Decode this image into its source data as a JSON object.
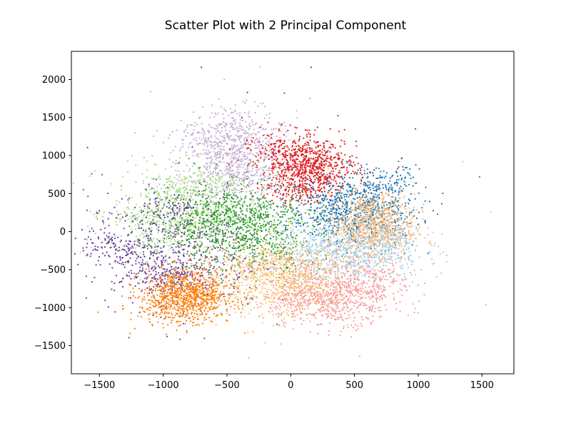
{
  "chart_data": {
    "type": "scatter",
    "title": "Scatter Plot with 2 Principal Component",
    "xlabel": "",
    "ylabel": "",
    "xlim": [
      -1720,
      1750
    ],
    "ylim": [
      -1870,
      2370
    ],
    "xticks": [
      -1500,
      -1000,
      -500,
      0,
      500,
      1000,
      1500
    ],
    "yticks": [
      -1500,
      -1000,
      -500,
      0,
      500,
      1000,
      1500,
      2000
    ],
    "xtick_labels": [
      "−1500",
      "−1000",
      "−500",
      "0",
      "500",
      "1000",
      "1500"
    ],
    "ytick_labels": [
      "−1500",
      "−1000",
      "−500",
      "0",
      "500",
      "1000",
      "1500",
      "2000"
    ],
    "grid": false,
    "legend": "none",
    "series": [
      {
        "color": "#c5b0d5",
        "center": [
          -420,
          920
        ],
        "spread": [
          230,
          330
        ],
        "points": [
          [
            -700,
            1300
          ],
          [
            -450,
            1450
          ],
          [
            -300,
            1200
          ],
          [
            -600,
            1050
          ],
          [
            -350,
            700
          ],
          [
            -520,
            850
          ]
        ]
      },
      {
        "color": "#a6dc84",
        "center": [
          -800,
          250
        ],
        "spread": [
          300,
          300
        ],
        "points": [
          [
            -1150,
            200
          ],
          [
            -900,
            500
          ],
          [
            -650,
            650
          ],
          [
            -1050,
            -100
          ],
          [
            -750,
            100
          ]
        ]
      },
      {
        "color": "#6a3d9a",
        "center": [
          -900,
          -250
        ],
        "spread": [
          350,
          380
        ],
        "points": [
          [
            -1400,
            -150
          ],
          [
            -1200,
            -400
          ],
          [
            -950,
            300
          ],
          [
            -800,
            -600
          ],
          [
            -1000,
            -650
          ]
        ]
      },
      {
        "color": "#ff7f0e",
        "center": [
          -820,
          -820
        ],
        "spread": [
          180,
          170
        ],
        "points": [
          [
            -1000,
            -950
          ],
          [
            -800,
            -700
          ],
          [
            -650,
            -850
          ],
          [
            -900,
            -1050
          ],
          [
            -750,
            -1000
          ]
        ]
      },
      {
        "color": "#2ca02c",
        "center": [
          -400,
          50
        ],
        "spread": [
          320,
          300
        ],
        "points": [
          [
            -500,
            300
          ],
          [
            -300,
            -100
          ],
          [
            -700,
            100
          ],
          [
            -200,
            200
          ],
          [
            -100,
            -300
          ]
        ]
      },
      {
        "color": "#e31a1c",
        "center": [
          130,
          830
        ],
        "spread": [
          200,
          210
        ],
        "points": [
          [
            0,
            900
          ],
          [
            150,
            1000
          ],
          [
            250,
            750
          ],
          [
            -100,
            1150
          ],
          [
            100,
            550
          ]
        ]
      },
      {
        "color": "#1f77b4",
        "center": [
          500,
          280
        ],
        "spread": [
          250,
          250
        ],
        "points": [
          [
            350,
            400
          ],
          [
            600,
            500
          ],
          [
            700,
            250
          ],
          [
            450,
            100
          ],
          [
            800,
            700
          ]
        ]
      },
      {
        "color": "#ffbb78",
        "center": [
          630,
          50
        ],
        "spread": [
          170,
          220
        ],
        "points": [
          [
            600,
            200
          ],
          [
            700,
            -50
          ],
          [
            550,
            0
          ],
          [
            750,
            350
          ]
        ]
      },
      {
        "color": "#a6cee3",
        "center": [
          450,
          -250
        ],
        "spread": [
          300,
          250
        ],
        "points": [
          [
            300,
            -400
          ],
          [
            650,
            -300
          ],
          [
            800,
            -100
          ],
          [
            200,
            -200
          ]
        ]
      },
      {
        "color": "#fb9a99",
        "center": [
          330,
          -780
        ],
        "spread": [
          280,
          200
        ],
        "points": [
          [
            200,
            -900
          ],
          [
            500,
            -800
          ],
          [
            0,
            -1000
          ],
          [
            650,
            -600
          ],
          [
            350,
            -1100
          ]
        ]
      },
      {
        "color": "#fdbf6f",
        "center": [
          -100,
          -600
        ],
        "spread": [
          300,
          260
        ],
        "points": [
          [
            -300,
            -500
          ],
          [
            100,
            -700
          ],
          [
            -50,
            -400
          ]
        ]
      }
    ],
    "outliers": [
      {
        "x": -700,
        "y": 2160,
        "color": "#6a3d9a"
      },
      {
        "x": 160,
        "y": 2160,
        "color": "#6a3d9a"
      },
      {
        "x": -240,
        "y": 2170,
        "color": "#fdbf6f"
      },
      {
        "x": -1100,
        "y": 1840,
        "color": "#c5b0d5"
      },
      {
        "x": -340,
        "y": 1830,
        "color": "#6a3d9a"
      },
      {
        "x": -50,
        "y": 1820,
        "color": "#1f77b4"
      },
      {
        "x": 150,
        "y": 1750,
        "color": "#fb9a99"
      },
      {
        "x": -1560,
        "y": 760,
        "color": "#1f77b4"
      },
      {
        "x": -1480,
        "y": 750,
        "color": "#1f77b4"
      },
      {
        "x": -1510,
        "y": -1060,
        "color": "#ff7f0e"
      },
      {
        "x": -1260,
        "y": -1340,
        "color": "#ff7f0e"
      },
      {
        "x": -330,
        "y": -1660,
        "color": "#fb9a99"
      },
      {
        "x": 540,
        "y": -1640,
        "color": "#fb9a99"
      },
      {
        "x": 1480,
        "y": 720,
        "color": "#2ca02c"
      },
      {
        "x": 1570,
        "y": 260,
        "color": "#ffbb78"
      },
      {
        "x": 1350,
        "y": 920,
        "color": "#fdbf6f"
      }
    ]
  }
}
